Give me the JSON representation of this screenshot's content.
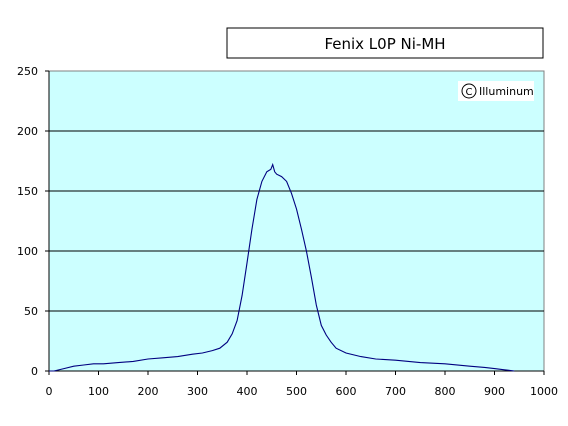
{
  "chart_data": {
    "type": "line",
    "title": "Fenix L0P Ni-MH",
    "watermark": "Illuminum",
    "xlim": [
      0,
      1000
    ],
    "ylim": [
      0,
      250
    ],
    "xticks": [
      "0",
      "100",
      "200",
      "300",
      "400",
      "500",
      "600",
      "700",
      "800",
      "900",
      "1000"
    ],
    "yticks": [
      "0",
      "50",
      "100",
      "150",
      "200",
      "250"
    ],
    "grid": "horizontal",
    "plot_background": "#ccffff",
    "line_color": "#000080",
    "series": [
      {
        "x": [
          0,
          10,
          30,
          50,
          70,
          90,
          110,
          140,
          170,
          200,
          230,
          260,
          290,
          310,
          330,
          345,
          360,
          370,
          380,
          390,
          400,
          410,
          420,
          430,
          440,
          448,
          452,
          456,
          460,
          470,
          480,
          490,
          500,
          510,
          520,
          530,
          540,
          550,
          560,
          570,
          580,
          600,
          630,
          660,
          700,
          750,
          800,
          850,
          880,
          900,
          920,
          940
        ],
        "y": [
          0,
          0,
          2,
          4,
          5,
          6,
          6,
          7,
          8,
          10,
          11,
          12,
          14,
          15,
          17,
          19,
          24,
          31,
          42,
          63,
          90,
          118,
          143,
          158,
          166,
          168,
          172,
          166,
          164,
          162,
          158,
          148,
          135,
          118,
          100,
          78,
          55,
          38,
          30,
          24,
          19,
          15,
          12,
          10,
          9,
          7,
          6,
          4,
          3,
          2,
          1,
          0
        ]
      }
    ]
  }
}
